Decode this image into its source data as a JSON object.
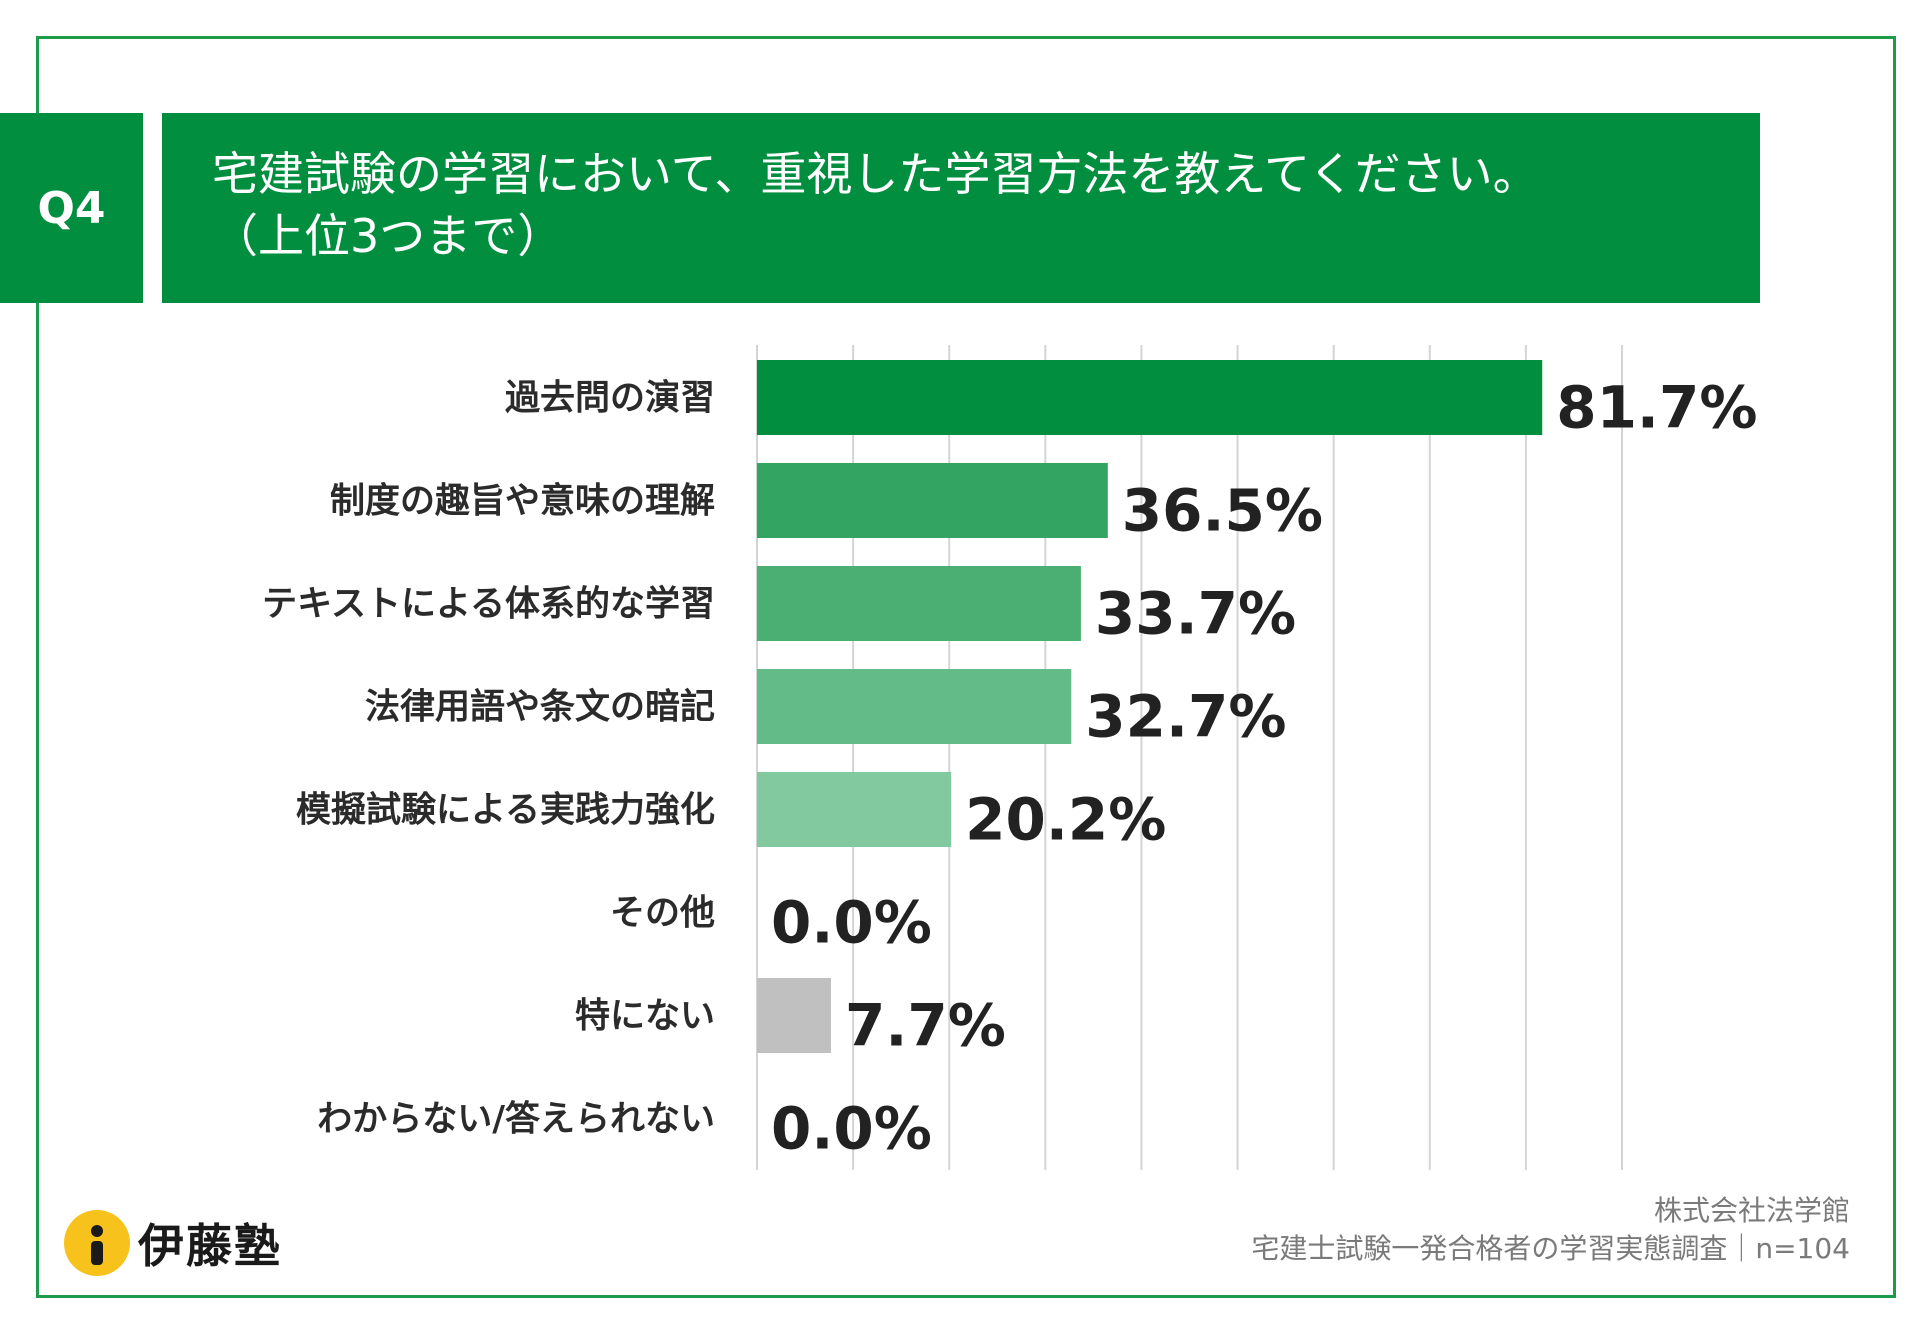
{
  "question": {
    "badge": "Q4",
    "line1": "宅建試験の学習において、重視した学習方法を教えてください。",
    "line2": "（上位3つまで）"
  },
  "chart_data": {
    "type": "bar",
    "orientation": "horizontal",
    "categories": [
      "過去問の演習",
      "制度の趣旨や意味の理解",
      "テキストによる体系的な学習",
      "法律用語や条文の暗記",
      "模擬試験による実践力強化",
      "その他",
      "特にない",
      "わからない/答えられない"
    ],
    "values": [
      81.7,
      36.5,
      33.7,
      32.7,
      20.2,
      0.0,
      7.7,
      0.0
    ],
    "value_labels": [
      "81.7%",
      "36.5%",
      "33.7%",
      "32.7%",
      "20.2%",
      "0.0%",
      "7.7%",
      "0.0%"
    ],
    "bar_colors": [
      "#018f3f",
      "#33a461",
      "#4baf73",
      "#63bb87",
      "#83c9a0",
      "#83c9a0",
      "#c0c0c0",
      "#c0c0c0"
    ],
    "xlim": [
      0,
      90
    ],
    "grid": true,
    "unit": "%"
  },
  "brand": {
    "logo_text": "伊藤塾"
  },
  "source": {
    "company": "株式会社法学館",
    "survey": "宅建士試験一発合格者の学習実態調査｜n=104"
  }
}
